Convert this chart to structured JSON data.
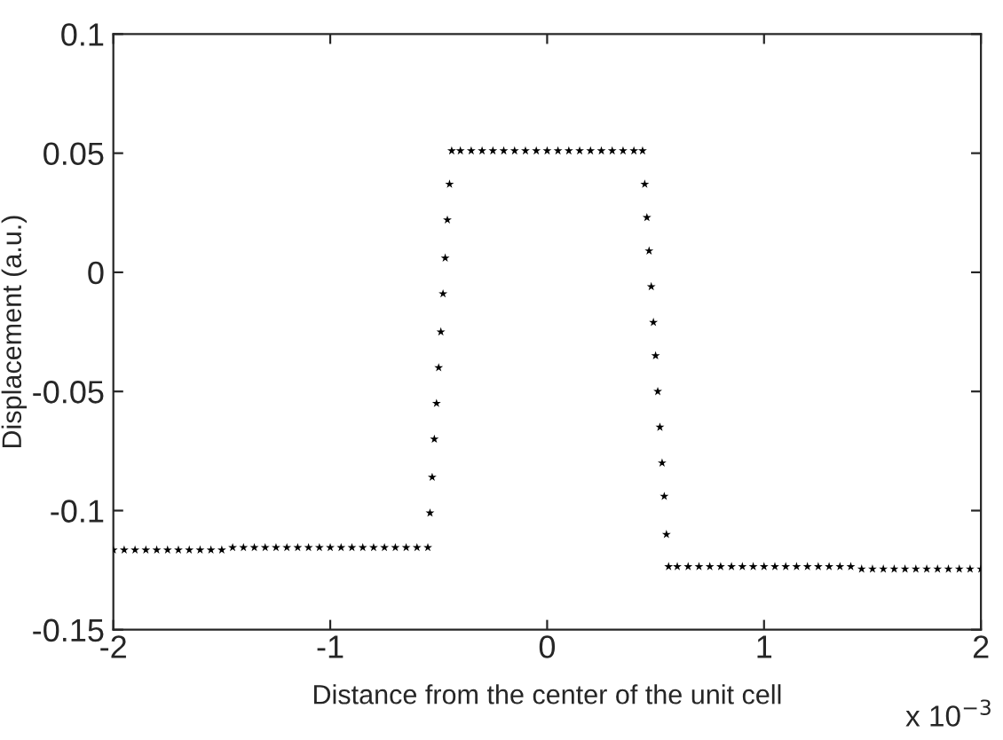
{
  "chart_data": {
    "type": "scatter",
    "xlabel": "Distance from the center of the unit cell",
    "ylabel": "Displacement (a.u.)",
    "xlim": [
      -2,
      2
    ],
    "ylim": [
      -0.15,
      0.1
    ],
    "xticks": [
      {
        "value": -2,
        "label": "-2"
      },
      {
        "value": -1,
        "label": "-1"
      },
      0,
      1,
      2
    ],
    "yticks": [
      {
        "value": -0.15,
        "label": "-0.15"
      },
      {
        "value": -0.1,
        "label": "-0.1"
      },
      {
        "value": -0.05,
        "label": "-0.05"
      },
      0,
      0.05,
      0.1
    ],
    "annotations": [
      "x 10$^{−3}$"
    ],
    "marker": "star",
    "grid": false,
    "legend": false,
    "series": [
      {
        "color": "#000000",
        "x": [
          -2,
          -1.95,
          -1.9,
          -1.85,
          -1.8,
          -1.75,
          -1.7,
          -1.65,
          -1.6,
          -1.55,
          -1.5,
          -1.45,
          -1.4,
          -1.35,
          -1.3,
          -1.25,
          -1.2,
          -1.15,
          -1.1,
          -1.05,
          -1,
          -0.95,
          -0.9,
          -0.85,
          -0.8,
          -0.75,
          -0.7,
          -0.65,
          -0.6,
          -0.55,
          -0.54,
          -0.53,
          -0.52,
          -0.51,
          -0.5,
          -0.49,
          -0.48,
          -0.47,
          -0.46,
          -0.45,
          -0.44,
          -0.4,
          -0.35,
          -0.3,
          -0.25,
          -0.2,
          -0.15,
          -0.1,
          -0.05,
          0,
          0.05,
          0.1,
          0.15,
          0.2,
          0.25,
          0.3,
          0.35,
          0.4,
          0.44,
          0.45,
          0.46,
          0.47,
          0.48,
          0.49,
          0.5,
          0.51,
          0.52,
          0.53,
          0.54,
          0.55,
          0.56,
          0.6,
          0.65,
          0.7,
          0.75,
          0.8,
          0.85,
          0.9,
          0.95,
          1,
          1.05,
          1.1,
          1.15,
          1.2,
          1.25,
          1.3,
          1.35,
          1.4,
          1.45,
          1.5,
          1.55,
          1.6,
          1.65,
          1.7,
          1.75,
          1.8,
          1.85,
          1.9,
          1.95,
          2
        ],
        "values": [
          -0.1165,
          -0.1165,
          -0.1165,
          -0.1165,
          -0.1165,
          -0.1165,
          -0.1165,
          -0.1165,
          -0.1165,
          -0.1165,
          -0.1165,
          -0.1155,
          -0.1155,
          -0.1155,
          -0.1155,
          -0.1155,
          -0.1155,
          -0.1155,
          -0.1155,
          -0.1155,
          -0.1155,
          -0.1155,
          -0.1155,
          -0.1155,
          -0.1155,
          -0.1155,
          -0.1155,
          -0.1155,
          -0.1155,
          -0.1155,
          -0.101,
          -0.086,
          -0.07,
          -0.055,
          -0.04,
          -0.025,
          -0.009,
          0.006,
          0.022,
          0.037,
          0.051,
          0.051,
          0.051,
          0.051,
          0.051,
          0.051,
          0.051,
          0.051,
          0.051,
          0.051,
          0.051,
          0.051,
          0.051,
          0.051,
          0.051,
          0.051,
          0.051,
          0.051,
          0.051,
          0.037,
          0.023,
          0.009,
          -0.006,
          -0.021,
          -0.035,
          -0.05,
          -0.065,
          -0.08,
          -0.094,
          -0.11,
          -0.1235,
          -0.1235,
          -0.1235,
          -0.1235,
          -0.1235,
          -0.1235,
          -0.1235,
          -0.1235,
          -0.1235,
          -0.1235,
          -0.1235,
          -0.1235,
          -0.1235,
          -0.1235,
          -0.1235,
          -0.1235,
          -0.1235,
          -0.1235,
          -0.1245,
          -0.1245,
          -0.1245,
          -0.1245,
          -0.1245,
          -0.1245,
          -0.1245,
          -0.1245,
          -0.1245,
          -0.1245,
          -0.1245,
          -0.1245
        ]
      }
    ]
  }
}
